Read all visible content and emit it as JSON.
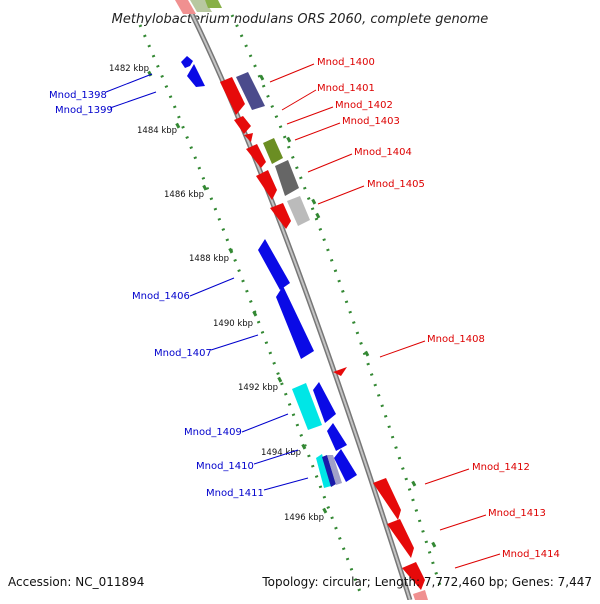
{
  "title": "Methylobacterium nodulans ORS 2060, complete genome",
  "footer": {
    "accession": "Accession: NC_011894",
    "summary": "Topology: circular; Length: 7,772,460 bp; Genes: 7,447"
  },
  "scale_labels": [
    "1482 kbp",
    "1484 kbp",
    "1486 kbp",
    "1488 kbp",
    "1490 kbp",
    "1492 kbp",
    "1494 kbp",
    "1496 kbp"
  ],
  "colors": {
    "forward_strand": "#dd0000",
    "reverse_strand": "#0000cc",
    "backbone": "#999999",
    "tick": "#338833"
  },
  "genes": [
    {
      "id": "Mnod_1398",
      "label": "Mnod_1398",
      "strand": "reverse",
      "color": "#0a0ae6"
    },
    {
      "id": "Mnod_1399",
      "label": "Mnod_1399",
      "strand": "reverse",
      "color": "#0a0ae6"
    },
    {
      "id": "Mnod_1400",
      "label": "Mnod_1400",
      "strand": "forward",
      "color": "#e60a0a"
    },
    {
      "id": "Mnod_1401",
      "label": "Mnod_1401",
      "strand": "forward",
      "color": "#4b4b8c"
    },
    {
      "id": "Mnod_1402",
      "label": "Mnod_1402",
      "strand": "forward",
      "color": "#e60a0a"
    },
    {
      "id": "Mnod_1403",
      "label": "Mnod_1403",
      "strand": "forward",
      "color": "#e60a0a"
    },
    {
      "id": "Mnod_1404",
      "label": "Mnod_1404",
      "strand": "forward",
      "color": "#e60a0a"
    },
    {
      "id": "Mnod_1405",
      "label": "Mnod_1405",
      "strand": "forward",
      "color": "#e60a0a"
    },
    {
      "id": "Mnod_1406",
      "label": "Mnod_1406",
      "strand": "reverse",
      "color": "#0a0ae6"
    },
    {
      "id": "Mnod_1407",
      "label": "Mnod_1407",
      "strand": "reverse",
      "color": "#0a0ae6"
    },
    {
      "id": "Mnod_1408",
      "label": "Mnod_1408",
      "strand": "forward",
      "color": "#e60a0a"
    },
    {
      "id": "Mnod_1409",
      "label": "Mnod_1409",
      "strand": "reverse",
      "color": "#00e6e6"
    },
    {
      "id": "Mnod_1410",
      "label": "Mnod_1410",
      "strand": "reverse",
      "color": "#0a0ae6"
    },
    {
      "id": "Mnod_1411",
      "label": "Mnod_1411",
      "strand": "reverse",
      "color": "#00e6e6"
    },
    {
      "id": "Mnod_1412",
      "label": "Mnod_1412",
      "strand": "forward",
      "color": "#e60a0a"
    },
    {
      "id": "Mnod_1413",
      "label": "Mnod_1413",
      "strand": "forward",
      "color": "#e60a0a"
    },
    {
      "id": "Mnod_1414",
      "label": "Mnod_1414",
      "strand": "forward",
      "color": "#e60a0a"
    }
  ]
}
